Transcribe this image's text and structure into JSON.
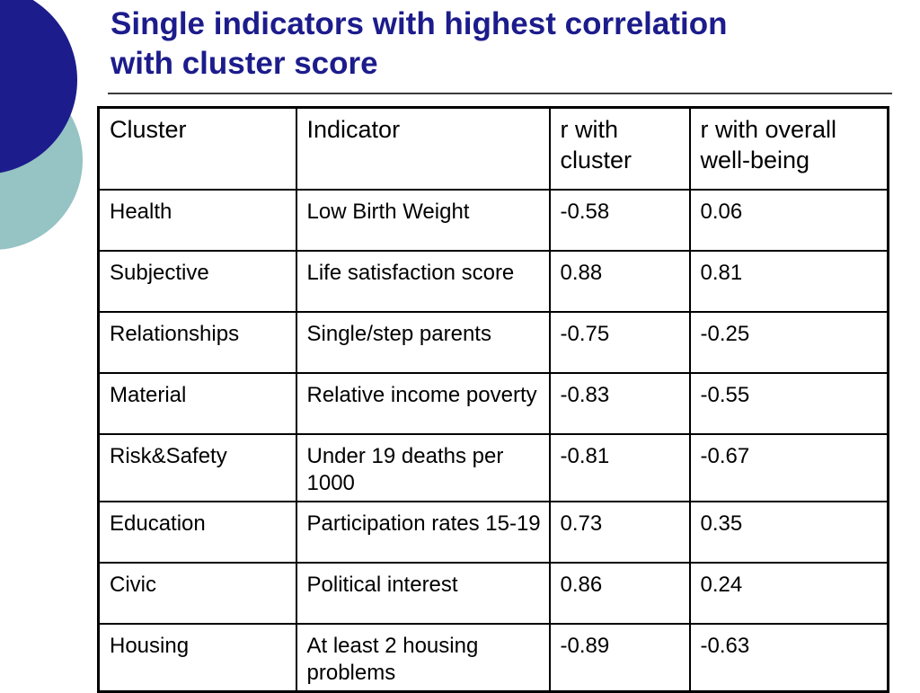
{
  "slide": {
    "title": {
      "lines": [
        "Single indicators with highest correlation",
        "with cluster score"
      ],
      "color": "#1c1c8c"
    },
    "decorations": {
      "dark_circle_color": "#1c1c8c",
      "light_circle_color": "#96c3c3"
    }
  },
  "table": {
    "headers": [
      "Cluster",
      "Indicator",
      "r with cluster",
      "r with overall well-being"
    ],
    "rows": [
      {
        "cluster": "Health",
        "indicator": "Low Birth Weight",
        "r_with_cluster": "-0.58",
        "r_with_overall": "0.06"
      },
      {
        "cluster": "Subjective",
        "indicator": "Life satisfaction score",
        "r_with_cluster": "0.88",
        "r_with_overall": "0.81"
      },
      {
        "cluster": "Relationships",
        "indicator": "Single/step parents",
        "r_with_cluster": "-0.75",
        "r_with_overall": "-0.25"
      },
      {
        "cluster": "Material",
        "indicator": "Relative income poverty",
        "r_with_cluster": "-0.83",
        "r_with_overall": "-0.55"
      },
      {
        "cluster": "Risk&Safety",
        "indicator": "Under 19 deaths per 1000",
        "r_with_cluster": "-0.81",
        "r_with_overall": "-0.67"
      },
      {
        "cluster": "Education",
        "indicator": "Participation rates 15-19",
        "r_with_cluster": "0.73",
        "r_with_overall": "0.35"
      },
      {
        "cluster": "Civic",
        "indicator": "Political interest",
        "r_with_cluster": "0.86",
        "r_with_overall": "0.24"
      },
      {
        "cluster": "Housing",
        "indicator": "At least 2 housing problems",
        "r_with_cluster": "-0.89",
        "r_with_overall": "-0.63"
      }
    ]
  }
}
